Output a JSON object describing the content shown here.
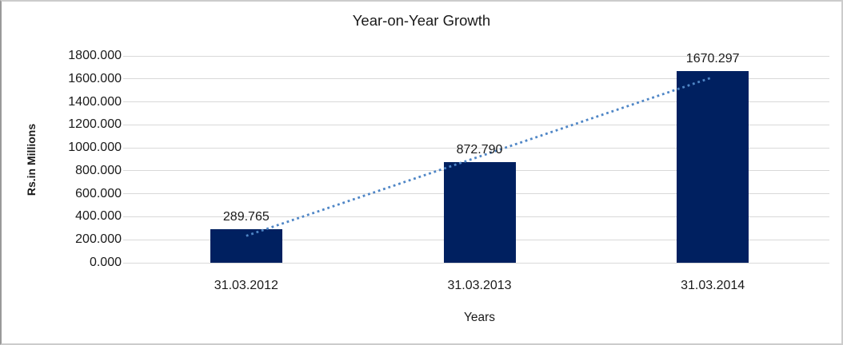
{
  "window": {
    "background": "#ffffff",
    "frame_border_color": "#cccccc"
  },
  "chart_data": {
    "type": "bar",
    "title": "Year-on-Year Growth",
    "xlabel": "Years",
    "ylabel": "Rs.in Millions",
    "categories": [
      "31.03.2012",
      "31.03.2013",
      "31.03.2014"
    ],
    "values": [
      289.765,
      872.79,
      1670.297
    ],
    "data_labels": [
      "289.765",
      "872.790",
      "1670.297"
    ],
    "ylim": [
      0,
      1800
    ],
    "ytick_step": 200,
    "yticks": [
      0,
      200,
      400,
      600,
      800,
      1000,
      1200,
      1400,
      1600,
      1800
    ],
    "ytick_labels": [
      "0.000",
      "200.000",
      "400.000",
      "600.000",
      "800.000",
      "1000.000",
      "1200.000",
      "1400.000",
      "1600.000",
      "1800.000"
    ],
    "grid": true,
    "legend": "none",
    "bar_color": "#002060",
    "gridline_color": "#d9d9d9",
    "text_color": "#1a1a1a",
    "trendline": {
      "kind": "linear",
      "style": "dotted",
      "color": "#4f86c6"
    }
  }
}
